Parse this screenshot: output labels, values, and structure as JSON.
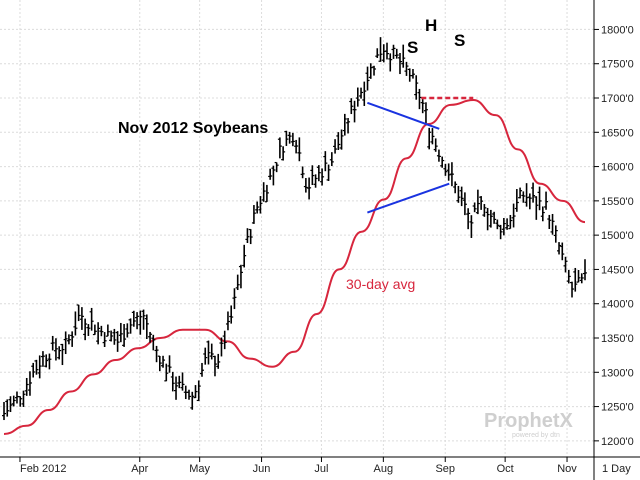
{
  "chart_data": {
    "type": "bar",
    "subtype": "ohlc",
    "title": "Nov 2012 Soybeans",
    "annotations": {
      "moving_average_label": "30-day avg",
      "pattern_labels": [
        "S",
        "H",
        "S"
      ]
    },
    "x_tick_labels": [
      "Feb 2012",
      "Apr",
      "May",
      "Jun",
      "Jul",
      "Aug",
      "Sep",
      "Oct",
      "Nov"
    ],
    "period_label": "1 Day",
    "ylim": [
      1175,
      1840
    ],
    "y_ticks": [
      1200,
      1250,
      1300,
      1350,
      1400,
      1450,
      1500,
      1550,
      1600,
      1650,
      1700,
      1750,
      1800
    ],
    "y_tick_labels": [
      "1200'0",
      "1250'0",
      "1300'0",
      "1350'0",
      "1400'0",
      "1450'0",
      "1500'0",
      "1550'0",
      "1600'0",
      "1650'0",
      "1700'0",
      "1750'0",
      "1800'0"
    ],
    "grid": true,
    "series": [
      {
        "name": "Nov 2012 Soybeans",
        "kind": "price",
        "color": "#000000",
        "anchors_close": [
          1240,
          1260,
          1290,
          1320,
          1335,
          1340,
          1385,
          1370,
          1355,
          1345,
          1370,
          1385,
          1335,
          1300,
          1275,
          1265,
          1320,
          1320,
          1380,
          1470,
          1540,
          1580,
          1630,
          1650,
          1570,
          1590,
          1610,
          1660,
          1700,
          1740,
          1775,
          1760,
          1740,
          1700,
          1640,
          1600,
          1560,
          1520,
          1550,
          1510,
          1520,
          1560,
          1550,
          1540,
          1480,
          1420,
          1435
        ]
      },
      {
        "name": "30-day avg",
        "kind": "moving_average",
        "color": "#d7263d",
        "values": [
          1210,
          1222,
          1245,
          1272,
          1297,
          1318,
          1335,
          1350,
          1362,
          1362,
          1345,
          1320,
          1308,
          1330,
          1385,
          1450,
          1505,
          1552,
          1612,
          1662,
          1690,
          1697,
          1675,
          1625,
          1575,
          1550,
          1519
        ]
      }
    ],
    "overlays": {
      "triangle_upper": {
        "from": {
          "x": "2012-07-24",
          "y": 1693
        },
        "to": {
          "x": "2012-08-29",
          "y": 1655
        }
      },
      "triangle_lower": {
        "from": {
          "x": "2012-07-24",
          "y": 1533
        },
        "to": {
          "x": "2012-09-03",
          "y": 1575
        }
      },
      "neckline": {
        "from": {
          "x": "2012-08-20",
          "y": 1700
        },
        "to": {
          "x": "2012-09-15",
          "y": 1700
        }
      },
      "triangle_color": "#1a33e0",
      "neckline_color": "#d7263d"
    }
  },
  "watermark": {
    "brand": "ProphetX",
    "powered_by": "powered by dtn"
  }
}
